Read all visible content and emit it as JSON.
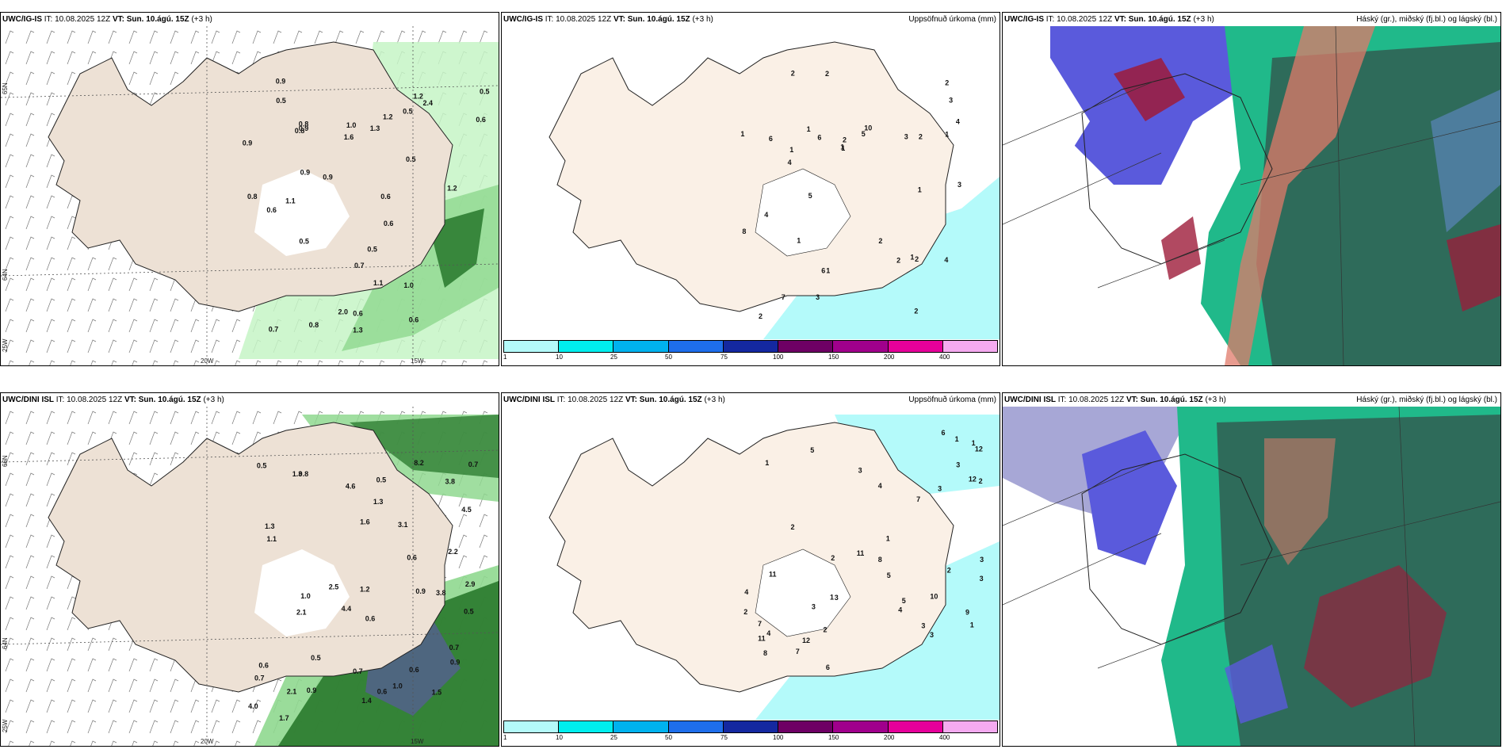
{
  "panels": [
    {
      "id": "igis-precip",
      "model": "UWC/IG-IS",
      "it_label": "IT:",
      "it": "10.08.2025 12Z",
      "vt_label": "VT:",
      "vt": "Sun. 10.ágú. 15Z",
      "lead": "(+3 h)",
      "right_title": "",
      "lat_labels": [
        "65N",
        "64N",
        "25W"
      ],
      "lon_labels": [
        "20W",
        "15W"
      ],
      "values": [
        "0.8",
        "0.5",
        "0.6",
        "0.5",
        "0.6",
        "0.6",
        "0.5",
        "0.5",
        "1.0",
        "0.5",
        "1.2",
        "0.9",
        "0.9",
        "0.7",
        "0.8",
        "1.0",
        "0.9",
        "0.8",
        "0.6",
        "1.1",
        "0.6",
        "0.8",
        "0.5",
        "0.9",
        "0.7",
        "1.2",
        "1.3",
        "0.9",
        "2.0",
        "1.3",
        "0.6",
        "1.2",
        "1.1",
        "2.4",
        "1.6"
      ]
    },
    {
      "id": "igis-accum",
      "model": "UWC/IG-IS",
      "it_label": "IT:",
      "it": "10.08.2025 12Z",
      "vt_label": "VT:",
      "vt": "Sun. 10.ágú. 15Z",
      "lead": "(+3 h)",
      "right_title": "Uppsöfnuð úrkoma (mm)",
      "values": [
        "1",
        "1",
        "1",
        "1",
        "1",
        "2",
        "2",
        "2",
        "1",
        "2",
        "2",
        "1",
        "2",
        "3",
        "3",
        "2",
        "4",
        "3",
        "4",
        "6",
        "3",
        "2",
        "1",
        "4",
        "5",
        "8",
        "4",
        "10",
        "6",
        "2",
        "7",
        "2",
        "5",
        "6",
        "1",
        "1"
      ]
    },
    {
      "id": "igis-cloud",
      "model": "UWC/IG-IS",
      "it_label": "IT:",
      "it": "10.08.2025 12Z",
      "vt_label": "VT:",
      "vt": "Sun. 10.ágú. 15Z",
      "lead": "(+3 h)",
      "right_title": "Háský (gr.), miðský (fj.bl.) og lágský (bl.)"
    },
    {
      "id": "dini-precip",
      "model": "UWC/DINI ISL",
      "it_label": "IT:",
      "it": "10.08.2025 12Z",
      "vt_label": "VT:",
      "vt": "Sun. 10.ágú. 15Z",
      "lead": "(+3 h)",
      "right_title": "",
      "lat_labels": [
        "66N",
        "64N",
        "25W"
      ],
      "lon_labels": [
        "20W",
        "15W"
      ],
      "values": [
        "0.7",
        "1.1",
        "1.0",
        "0.6",
        "0.8",
        "0.7",
        "1.3",
        "0.5",
        "0.9",
        "0.5",
        "0.6",
        "0.9",
        "0.6",
        "0.6",
        "1.0",
        "1.4",
        "0.6",
        "0.9",
        "2.1",
        "1.7",
        "1.6",
        "1.5",
        "2.1",
        "4.5",
        "4.6",
        "1.3",
        "3.8",
        "0.5",
        "4.4",
        "2.5",
        "4.0",
        "3.1",
        "3.8",
        "2.9",
        "1.2",
        "0.5",
        "0.7",
        "2.2",
        "8.2",
        "1.3",
        "0.7"
      ]
    },
    {
      "id": "dini-accum",
      "model": "UWC/DINI ISL",
      "it_label": "IT:",
      "it": "10.08.2025 12Z",
      "vt_label": "VT:",
      "vt": "Sun. 10.ágú. 15Z",
      "lead": "(+3 h)",
      "right_title": "Uppsöfnuð úrkoma (mm)",
      "values": [
        "4",
        "3",
        "5",
        "3",
        "3",
        "1",
        "2",
        "1",
        "1",
        "1",
        "2",
        "2",
        "1",
        "3",
        "3",
        "3",
        "4",
        "4",
        "7",
        "3",
        "3",
        "9",
        "6",
        "7",
        "11",
        "6",
        "7",
        "10",
        "5",
        "11",
        "12",
        "12",
        "8",
        "11",
        "4",
        "5",
        "8",
        "12",
        "2",
        "3",
        "2",
        "1",
        "2"
      ]
    },
    {
      "id": "dini-cloud",
      "model": "UWC/DINI ISL",
      "it_label": "IT:",
      "it": "10.08.2025 12Z",
      "vt_label": "VT:",
      "vt": "Sun. 10.ágú. 15Z",
      "lead": "(+3 h)",
      "right_title": "Háský (gr.), miðský (fj.bl.) og lágský (bl.)"
    }
  ],
  "legend": {
    "ticks": [
      "1",
      "10",
      "25",
      "50",
      "75",
      "100",
      "150",
      "200",
      "400"
    ],
    "colors": [
      "#b4fafa",
      "#00eeee",
      "#00b2ee",
      "#1e6eeb",
      "#1428a0",
      "#6e0064",
      "#a0008c",
      "#e6009a",
      "#f5aaf0"
    ]
  },
  "colors": {
    "land": "#faf0e6",
    "precip_light": "#c6f5c6",
    "precip_mid": "#8fd88f",
    "precip_dark": "#2e7d32",
    "accum_cyan": "#b4fafa",
    "cloud_high": "#5a5adc",
    "cloud_mid": "#2e6b5a",
    "cloud_low": "#20b98a"
  }
}
